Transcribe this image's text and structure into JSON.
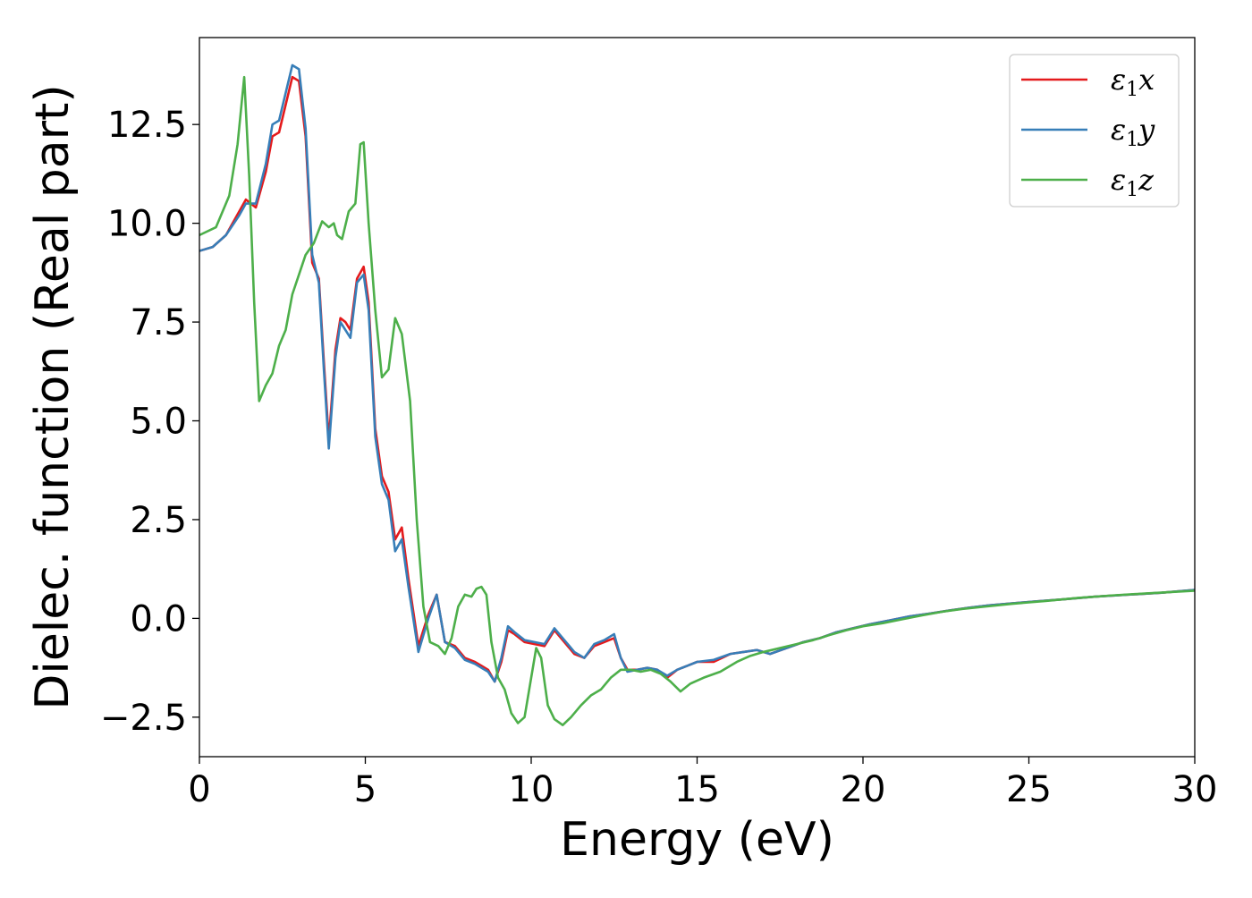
{
  "chart_data": {
    "type": "line",
    "title": "",
    "xlabel": "Energy (eV)",
    "ylabel": "Dielec. function (Real part)",
    "xlim": [
      0,
      30
    ],
    "ylim": [
      -3.5,
      14.7
    ],
    "xticks": [
      0,
      5,
      10,
      15,
      20,
      25,
      30
    ],
    "xtick_labels": [
      "0",
      "5",
      "10",
      "15",
      "20",
      "25",
      "30"
    ],
    "yticks": [
      -2.5,
      0.0,
      2.5,
      5.0,
      7.5,
      10.0,
      12.5
    ],
    "ytick_labels": [
      "−2.5",
      "0.0",
      "2.5",
      "5.0",
      "7.5",
      "10.0",
      "12.5"
    ],
    "grid": false,
    "legend_position": "top-right",
    "series": [
      {
        "name": "ε₁x",
        "legend_base": "ε",
        "legend_sub": "1",
        "legend_var": "x",
        "color": "#e41a1c",
        "x": [
          0,
          0.4,
          0.8,
          1.2,
          1.4,
          1.7,
          2.0,
          2.2,
          2.4,
          2.6,
          2.8,
          3.0,
          3.2,
          3.4,
          3.6,
          3.75,
          3.9,
          4.1,
          4.25,
          4.4,
          4.55,
          4.75,
          4.95,
          5.1,
          5.3,
          5.5,
          5.7,
          5.9,
          6.1,
          6.3,
          6.6,
          6.9,
          7.15,
          7.4,
          7.7,
          8.0,
          8.3,
          8.5,
          8.7,
          8.9,
          9.1,
          9.3,
          9.5,
          9.8,
          10.1,
          10.4,
          10.7,
          11.0,
          11.3,
          11.6,
          11.9,
          12.2,
          12.5,
          12.7,
          12.9,
          13.2,
          13.5,
          13.8,
          14.1,
          14.4,
          14.7,
          15.0,
          15.5,
          16.0,
          16.4,
          16.8,
          17.2,
          17.7,
          18.2,
          18.7,
          19.2,
          19.7,
          20.2,
          20.8,
          21.4,
          22.0,
          22.6,
          23.2,
          23.8,
          24.5,
          25.2,
          26.0,
          27.0,
          28.0,
          29.0,
          30.0
        ],
        "y": [
          9.3,
          9.4,
          9.7,
          10.3,
          10.6,
          10.4,
          11.3,
          12.2,
          12.3,
          13.0,
          13.7,
          13.6,
          12.2,
          9.0,
          8.6,
          6.5,
          4.5,
          6.8,
          7.6,
          7.5,
          7.3,
          8.6,
          8.9,
          8.0,
          4.8,
          3.6,
          3.2,
          2.0,
          2.3,
          1.0,
          -0.7,
          0.1,
          0.6,
          -0.6,
          -0.7,
          -1.0,
          -1.1,
          -1.2,
          -1.3,
          -1.6,
          -1.1,
          -0.3,
          -0.4,
          -0.6,
          -0.65,
          -0.7,
          -0.3,
          -0.6,
          -0.9,
          -1.0,
          -0.7,
          -0.6,
          -0.5,
          -1.0,
          -1.3,
          -1.3,
          -1.25,
          -1.3,
          -1.5,
          -1.3,
          -1.2,
          -1.1,
          -1.1,
          -0.9,
          -0.85,
          -0.8,
          -0.9,
          -0.75,
          -0.6,
          -0.5,
          -0.35,
          -0.25,
          -0.15,
          -0.05,
          0.05,
          0.12,
          0.2,
          0.27,
          0.33,
          0.38,
          0.43,
          0.48,
          0.55,
          0.6,
          0.65,
          0.72
        ]
      },
      {
        "name": "ε₁y",
        "legend_base": "ε",
        "legend_sub": "1",
        "legend_var": "y",
        "color": "#377eb8",
        "x": [
          0,
          0.4,
          0.8,
          1.2,
          1.4,
          1.7,
          2.0,
          2.2,
          2.4,
          2.6,
          2.8,
          3.0,
          3.2,
          3.4,
          3.6,
          3.75,
          3.9,
          4.1,
          4.25,
          4.4,
          4.55,
          4.75,
          4.95,
          5.1,
          5.3,
          5.5,
          5.7,
          5.9,
          6.1,
          6.3,
          6.6,
          6.9,
          7.15,
          7.4,
          7.7,
          8.0,
          8.3,
          8.5,
          8.7,
          8.9,
          9.1,
          9.3,
          9.5,
          9.8,
          10.1,
          10.4,
          10.7,
          11.0,
          11.3,
          11.6,
          11.9,
          12.2,
          12.5,
          12.7,
          12.9,
          13.2,
          13.5,
          13.8,
          14.1,
          14.4,
          14.7,
          15.0,
          15.5,
          16.0,
          16.4,
          16.8,
          17.2,
          17.7,
          18.2,
          18.7,
          19.2,
          19.7,
          20.2,
          20.8,
          21.4,
          22.0,
          22.6,
          23.2,
          23.8,
          24.5,
          25.2,
          26.0,
          27.0,
          28.0,
          29.0,
          30.0
        ],
        "y": [
          9.3,
          9.4,
          9.7,
          10.2,
          10.5,
          10.5,
          11.5,
          12.5,
          12.6,
          13.3,
          14.0,
          13.9,
          12.4,
          9.2,
          8.5,
          6.3,
          4.3,
          6.6,
          7.5,
          7.3,
          7.1,
          8.5,
          8.7,
          7.8,
          4.6,
          3.4,
          3.0,
          1.7,
          2.0,
          0.8,
          -0.85,
          0.0,
          0.6,
          -0.6,
          -0.75,
          -1.05,
          -1.15,
          -1.25,
          -1.35,
          -1.6,
          -1.0,
          -0.2,
          -0.35,
          -0.55,
          -0.6,
          -0.65,
          -0.25,
          -0.55,
          -0.85,
          -1.0,
          -0.65,
          -0.55,
          -0.4,
          -1.0,
          -1.35,
          -1.3,
          -1.25,
          -1.3,
          -1.45,
          -1.3,
          -1.2,
          -1.1,
          -1.05,
          -0.9,
          -0.85,
          -0.8,
          -0.9,
          -0.75,
          -0.6,
          -0.5,
          -0.35,
          -0.25,
          -0.15,
          -0.05,
          0.05,
          0.12,
          0.2,
          0.27,
          0.33,
          0.38,
          0.43,
          0.48,
          0.55,
          0.6,
          0.65,
          0.72
        ]
      },
      {
        "name": "ε₁z",
        "legend_base": "ε",
        "legend_sub": "1",
        "legend_var": "z",
        "color": "#4daf4a",
        "x": [
          0,
          0.5,
          0.9,
          1.15,
          1.35,
          1.5,
          1.65,
          1.8,
          2.0,
          2.2,
          2.4,
          2.6,
          2.8,
          3.0,
          3.2,
          3.45,
          3.7,
          3.9,
          4.05,
          4.15,
          4.3,
          4.5,
          4.7,
          4.85,
          4.95,
          5.1,
          5.3,
          5.5,
          5.7,
          5.9,
          6.1,
          6.35,
          6.55,
          6.75,
          6.95,
          7.2,
          7.4,
          7.6,
          7.8,
          8.0,
          8.2,
          8.35,
          8.5,
          8.65,
          8.8,
          9.0,
          9.2,
          9.4,
          9.6,
          9.8,
          10.0,
          10.15,
          10.3,
          10.5,
          10.7,
          10.95,
          11.2,
          11.5,
          11.8,
          12.1,
          12.4,
          12.7,
          13.0,
          13.3,
          13.6,
          13.9,
          14.2,
          14.5,
          14.8,
          15.2,
          15.7,
          16.2,
          16.6,
          17.0,
          17.5,
          18.0,
          18.5,
          19.0,
          19.5,
          20.0,
          20.6,
          21.2,
          21.8,
          22.4,
          23.0,
          23.7,
          24.5,
          25.5,
          26.5,
          27.5,
          28.5,
          30.0
        ],
        "y": [
          9.7,
          9.9,
          10.7,
          12.0,
          13.7,
          11.2,
          8.0,
          5.5,
          5.9,
          6.2,
          6.9,
          7.3,
          8.2,
          8.7,
          9.2,
          9.5,
          10.05,
          9.9,
          10.0,
          9.7,
          9.6,
          10.3,
          10.5,
          12.0,
          12.05,
          10.0,
          7.8,
          6.1,
          6.3,
          7.6,
          7.2,
          5.5,
          2.5,
          0.3,
          -0.6,
          -0.7,
          -0.9,
          -0.5,
          0.3,
          0.6,
          0.55,
          0.75,
          0.8,
          0.6,
          -0.6,
          -1.5,
          -1.8,
          -2.4,
          -2.65,
          -2.5,
          -1.5,
          -0.75,
          -1.0,
          -2.2,
          -2.55,
          -2.7,
          -2.5,
          -2.2,
          -1.95,
          -1.8,
          -1.5,
          -1.3,
          -1.3,
          -1.35,
          -1.3,
          -1.4,
          -1.6,
          -1.85,
          -1.65,
          -1.5,
          -1.35,
          -1.1,
          -0.95,
          -0.85,
          -0.75,
          -0.65,
          -0.55,
          -0.42,
          -0.3,
          -0.2,
          -0.12,
          -0.02,
          0.08,
          0.17,
          0.24,
          0.3,
          0.37,
          0.44,
          0.52,
          0.58,
          0.63,
          0.7
        ]
      }
    ]
  }
}
